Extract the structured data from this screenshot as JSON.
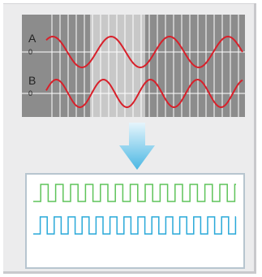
{
  "scope": {
    "channel_a_label": "A",
    "channel_b_label": "B",
    "zero_label_a": "0",
    "zero_label_b": "0",
    "colors": {
      "background": "#8c8c8c",
      "highlight_band": "#c8c8c8",
      "grid": "#ffffff",
      "signal": "#d8202a"
    }
  },
  "arrow": {
    "icon": "down-arrow-icon",
    "color": "#4ab7e3"
  },
  "digital": {
    "colors": {
      "channel_a": "#5fc45a",
      "channel_b": "#29a9d9",
      "border": "#b7c5cf"
    }
  }
}
